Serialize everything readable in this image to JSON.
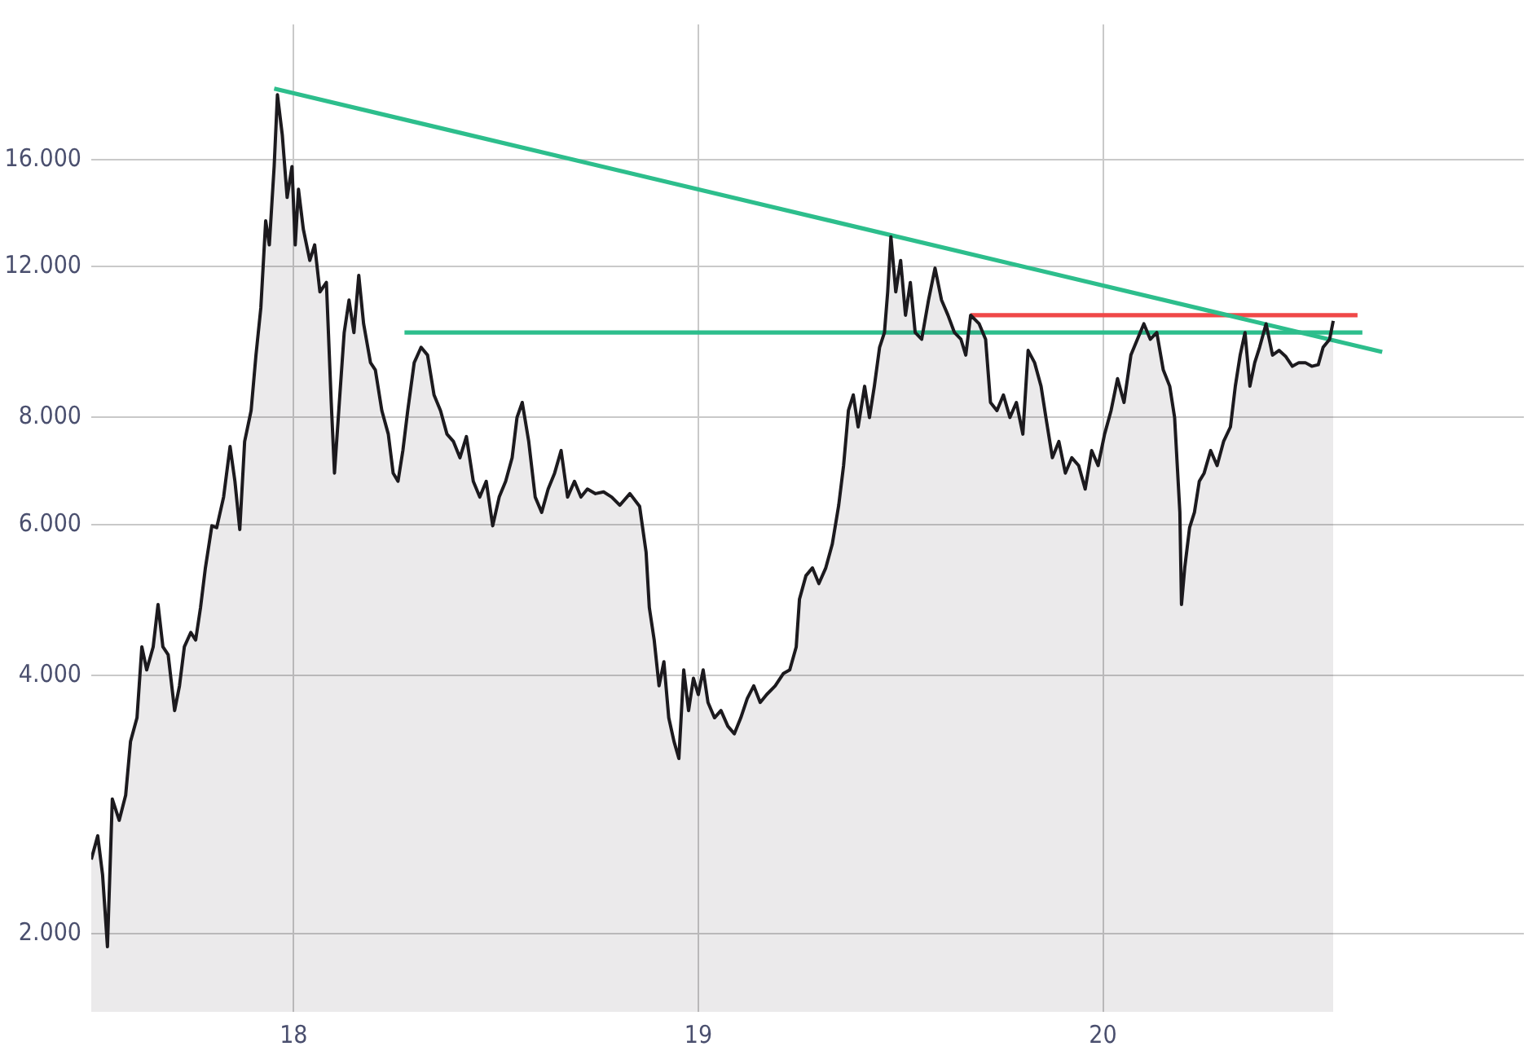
{
  "chart_data": {
    "type": "area",
    "log": "y",
    "grid": true,
    "legend": false,
    "marker": "none",
    "line_style": "solid",
    "xlim": [
      17.5,
      21.04
    ],
    "xticks": [
      18,
      19,
      20
    ],
    "ylim": [
      1620,
      23000
    ],
    "yticks": [
      {
        "value": 2000,
        "label": "2.000"
      },
      {
        "value": 4000,
        "label": "4.000"
      },
      {
        "value": 6000,
        "label": "6.000"
      },
      {
        "value": 8000,
        "label": "8.000"
      },
      {
        "value": 12000,
        "label": "12.000"
      },
      {
        "value": 16000,
        "label": "16.000"
      }
    ],
    "series": [
      {
        "color": "#1c1a1e",
        "x": [
          17.5,
          17.516,
          17.528,
          17.54,
          17.552,
          17.569,
          17.585,
          17.597,
          17.613,
          17.625,
          17.637,
          17.653,
          17.665,
          17.677,
          17.69,
          17.706,
          17.718,
          17.73,
          17.746,
          17.758,
          17.77,
          17.782,
          17.798,
          17.81,
          17.827,
          17.843,
          17.855,
          17.867,
          17.879,
          17.895,
          17.907,
          17.919,
          17.931,
          17.94,
          17.952,
          17.96,
          17.972,
          17.984,
          17.996,
          18.004,
          18.012,
          18.024,
          18.04,
          18.052,
          18.065,
          18.081,
          18.093,
          18.101,
          18.113,
          18.125,
          18.137,
          18.149,
          18.161,
          18.173,
          18.19,
          18.202,
          18.218,
          18.234,
          18.246,
          18.258,
          18.27,
          18.282,
          18.298,
          18.315,
          18.331,
          18.347,
          18.363,
          18.379,
          18.395,
          18.411,
          18.427,
          18.444,
          18.46,
          18.476,
          18.492,
          18.508,
          18.524,
          18.54,
          18.552,
          18.565,
          18.581,
          18.597,
          18.613,
          18.629,
          18.645,
          18.661,
          18.677,
          18.694,
          18.71,
          18.726,
          18.746,
          18.766,
          18.786,
          18.806,
          18.831,
          18.855,
          18.871,
          18.879,
          18.891,
          18.903,
          18.915,
          18.927,
          18.94,
          18.952,
          18.964,
          18.976,
          18.988,
          19.0,
          19.012,
          19.024,
          19.04,
          19.056,
          19.073,
          19.089,
          19.105,
          19.121,
          19.137,
          19.153,
          19.169,
          19.19,
          19.21,
          19.226,
          19.242,
          19.25,
          19.266,
          19.282,
          19.298,
          19.315,
          19.331,
          19.347,
          19.359,
          19.371,
          19.383,
          19.395,
          19.411,
          19.423,
          19.435,
          19.448,
          19.46,
          19.468,
          19.476,
          19.488,
          19.5,
          19.512,
          19.524,
          19.536,
          19.552,
          19.569,
          19.585,
          19.601,
          19.617,
          19.633,
          19.649,
          19.661,
          19.673,
          19.694,
          19.71,
          19.722,
          19.738,
          19.754,
          19.77,
          19.786,
          19.802,
          19.815,
          19.831,
          19.847,
          19.859,
          19.875,
          19.891,
          19.907,
          19.923,
          19.94,
          19.956,
          19.972,
          19.988,
          20.004,
          20.02,
          20.036,
          20.052,
          20.069,
          20.085,
          20.101,
          20.117,
          20.133,
          20.149,
          20.165,
          20.177,
          20.19,
          20.194,
          20.202,
          20.214,
          20.226,
          20.238,
          20.25,
          20.266,
          20.282,
          20.298,
          20.315,
          20.327,
          20.339,
          20.351,
          20.363,
          20.375,
          20.387,
          20.403,
          20.419,
          20.435,
          20.452,
          20.468,
          20.484,
          20.5,
          20.516,
          20.532,
          20.544,
          20.56,
          20.569
        ],
        "values": [
          2440,
          2600,
          2340,
          1930,
          2870,
          2710,
          2900,
          3350,
          3570,
          4320,
          4060,
          4320,
          4840,
          4320,
          4230,
          3640,
          3890,
          4320,
          4490,
          4400,
          4800,
          5340,
          5980,
          5950,
          6460,
          7400,
          6740,
          5920,
          7500,
          8150,
          9460,
          10740,
          13570,
          12720,
          15730,
          19040,
          17100,
          14450,
          15700,
          12720,
          14770,
          13270,
          12200,
          12720,
          11210,
          11500,
          8330,
          6890,
          8330,
          10050,
          10970,
          10050,
          11720,
          10290,
          9270,
          9090,
          8150,
          7650,
          6890,
          6740,
          7320,
          8150,
          9270,
          9660,
          9460,
          8500,
          8150,
          7650,
          7500,
          7180,
          7600,
          6740,
          6460,
          6740,
          5980,
          6460,
          6740,
          7180,
          8000,
          8330,
          7500,
          6460,
          6200,
          6600,
          6890,
          7320,
          6460,
          6740,
          6460,
          6600,
          6520,
          6550,
          6460,
          6320,
          6520,
          6300,
          5570,
          4800,
          4400,
          3890,
          4150,
          3570,
          3350,
          3200,
          4060,
          3640,
          3970,
          3800,
          4060,
          3720,
          3570,
          3640,
          3490,
          3420,
          3570,
          3760,
          3890,
          3720,
          3800,
          3890,
          4020,
          4060,
          4320,
          4910,
          5230,
          5340,
          5120,
          5340,
          5690,
          6320,
          7030,
          8150,
          8500,
          7800,
          8700,
          8000,
          8700,
          9660,
          10050,
          11210,
          13000,
          11210,
          12200,
          10530,
          11500,
          10050,
          9870,
          10970,
          11950,
          10970,
          10530,
          10050,
          9870,
          9460,
          10530,
          10290,
          9870,
          8330,
          8150,
          8500,
          8000,
          8330,
          7650,
          9580,
          9270,
          8700,
          8000,
          7180,
          7500,
          6890,
          7180,
          7030,
          6600,
          7320,
          7030,
          7650,
          8150,
          8880,
          8330,
          9460,
          9870,
          10290,
          9870,
          10050,
          9090,
          8700,
          8000,
          6200,
          4840,
          5340,
          5950,
          6200,
          6740,
          6890,
          7320,
          7030,
          7500,
          7800,
          8700,
          9460,
          10050,
          8700,
          9270,
          9660,
          10290,
          9460,
          9580,
          9420,
          9180,
          9270,
          9270,
          9180,
          9220,
          9660,
          9870,
          10370
        ]
      },
      {
        "type": "line",
        "color": "#2dbe8c",
        "x": [
          17.952,
          20.69
        ],
        "values": [
          19360,
          9540
        ]
      },
      {
        "type": "line",
        "color": "#2dbe8c",
        "x": [
          18.274,
          20.641
        ],
        "values": [
          10050,
          10050
        ]
      },
      {
        "type": "line",
        "color": "#f04848",
        "x": [
          19.673,
          20.629
        ],
        "values": [
          10530,
          10530
        ]
      }
    ]
  }
}
